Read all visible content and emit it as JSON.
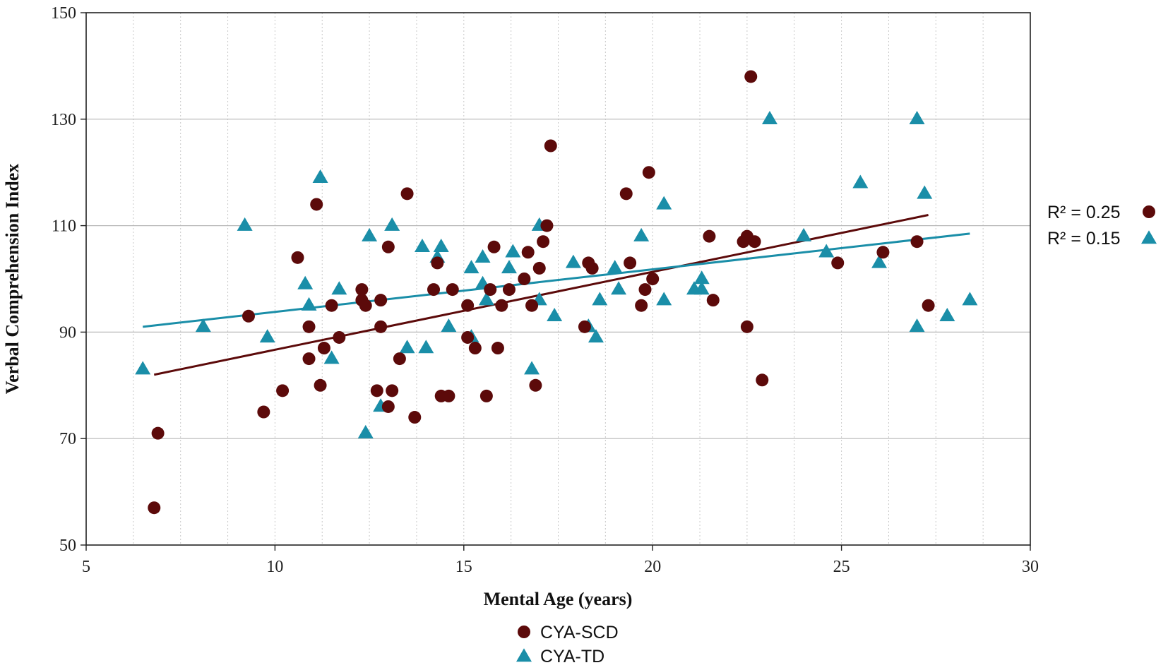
{
  "chart_data": {
    "type": "scatter",
    "title": "",
    "xlabel": "Mental Age (years)",
    "ylabel": "Verbal Comprehension Index",
    "xlim": [
      5,
      30
    ],
    "ylim": [
      50,
      150
    ],
    "xticks": [
      5,
      10,
      15,
      20,
      25,
      30
    ],
    "yticks": [
      50,
      70,
      90,
      110,
      130,
      150
    ],
    "grid": "major horizontal solid, minor vertical dotted",
    "series": [
      {
        "name": "CYA-SCD",
        "marker": "circle",
        "color": "#5c0a0a",
        "r2_label": "R² = 0.25",
        "trendline": {
          "x": [
            6.8,
            27.3
          ],
          "y": [
            82,
            112
          ]
        },
        "points": [
          [
            6.8,
            57
          ],
          [
            6.9,
            71
          ],
          [
            9.3,
            93
          ],
          [
            9.7,
            75
          ],
          [
            10.2,
            79
          ],
          [
            10.6,
            104
          ],
          [
            10.9,
            85
          ],
          [
            10.9,
            91
          ],
          [
            11.1,
            114
          ],
          [
            11.2,
            80
          ],
          [
            11.3,
            87
          ],
          [
            11.5,
            95
          ],
          [
            11.7,
            89
          ],
          [
            12.3,
            98
          ],
          [
            12.3,
            96
          ],
          [
            12.4,
            95
          ],
          [
            12.7,
            79
          ],
          [
            12.8,
            96
          ],
          [
            12.8,
            91
          ],
          [
            13.0,
            106
          ],
          [
            13.0,
            76
          ],
          [
            13.1,
            79
          ],
          [
            13.3,
            85
          ],
          [
            13.5,
            116
          ],
          [
            13.7,
            74
          ],
          [
            14.2,
            98
          ],
          [
            14.3,
            103
          ],
          [
            14.4,
            78
          ],
          [
            14.6,
            78
          ],
          [
            14.7,
            98
          ],
          [
            15.1,
            95
          ],
          [
            15.1,
            89
          ],
          [
            15.3,
            87
          ],
          [
            15.6,
            78
          ],
          [
            15.7,
            98
          ],
          [
            15.8,
            106
          ],
          [
            15.9,
            87
          ],
          [
            16.0,
            95
          ],
          [
            16.2,
            98
          ],
          [
            16.6,
            100
          ],
          [
            16.7,
            105
          ],
          [
            16.8,
            95
          ],
          [
            16.9,
            80
          ],
          [
            17.0,
            102
          ],
          [
            17.1,
            107
          ],
          [
            17.2,
            110
          ],
          [
            17.3,
            125
          ],
          [
            18.2,
            91
          ],
          [
            18.3,
            103
          ],
          [
            18.4,
            102
          ],
          [
            19.3,
            116
          ],
          [
            19.4,
            103
          ],
          [
            19.7,
            95
          ],
          [
            19.8,
            98
          ],
          [
            19.9,
            120
          ],
          [
            20.0,
            100
          ],
          [
            21.5,
            108
          ],
          [
            21.6,
            96
          ],
          [
            22.4,
            107
          ],
          [
            22.5,
            108
          ],
          [
            22.5,
            91
          ],
          [
            22.6,
            138
          ],
          [
            22.7,
            107
          ],
          [
            22.9,
            81
          ],
          [
            24.9,
            103
          ],
          [
            26.1,
            105
          ],
          [
            27.0,
            107
          ],
          [
            27.3,
            95
          ]
        ]
      },
      {
        "name": "CYA-TD",
        "marker": "triangle",
        "color": "#1a8ea8",
        "r2_label": "R² = 0.15",
        "trendline": {
          "x": [
            6.5,
            28.4
          ],
          "y": [
            91,
            108.5
          ]
        },
        "points": [
          [
            6.5,
            83
          ],
          [
            8.1,
            91
          ],
          [
            9.2,
            110
          ],
          [
            9.8,
            89
          ],
          [
            10.8,
            99
          ],
          [
            10.9,
            95
          ],
          [
            11.2,
            119
          ],
          [
            11.5,
            85
          ],
          [
            11.7,
            98
          ],
          [
            12.4,
            71
          ],
          [
            12.5,
            108
          ],
          [
            12.8,
            76
          ],
          [
            13.1,
            110
          ],
          [
            13.5,
            87
          ],
          [
            13.9,
            106
          ],
          [
            14.0,
            87
          ],
          [
            14.3,
            104
          ],
          [
            14.4,
            106
          ],
          [
            14.6,
            91
          ],
          [
            15.2,
            89
          ],
          [
            15.2,
            102
          ],
          [
            15.5,
            104
          ],
          [
            15.5,
            99
          ],
          [
            15.6,
            96
          ],
          [
            16.2,
            102
          ],
          [
            16.3,
            105
          ],
          [
            16.8,
            83
          ],
          [
            17.0,
            110
          ],
          [
            17.0,
            96
          ],
          [
            17.4,
            93
          ],
          [
            17.9,
            103
          ],
          [
            18.3,
            91
          ],
          [
            18.5,
            89
          ],
          [
            18.6,
            96
          ],
          [
            19.0,
            102
          ],
          [
            19.1,
            98
          ],
          [
            19.7,
            108
          ],
          [
            20.3,
            114
          ],
          [
            20.3,
            96
          ],
          [
            21.1,
            98
          ],
          [
            21.3,
            98
          ],
          [
            21.3,
            100
          ],
          [
            23.1,
            130
          ],
          [
            24.0,
            108
          ],
          [
            24.6,
            105
          ],
          [
            25.5,
            118
          ],
          [
            26.0,
            103
          ],
          [
            27.0,
            130
          ],
          [
            27.0,
            91
          ],
          [
            27.2,
            116
          ],
          [
            27.8,
            93
          ],
          [
            28.4,
            96
          ]
        ]
      }
    ]
  }
}
